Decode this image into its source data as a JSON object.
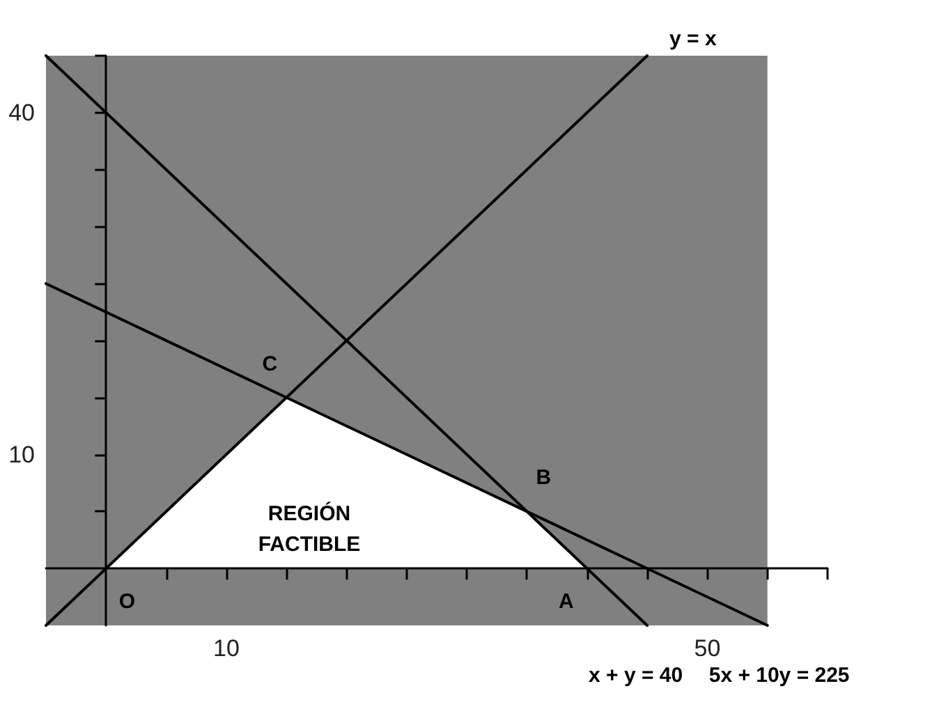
{
  "chart_data": {
    "type": "line",
    "xlim": [
      -5,
      60
    ],
    "ylim": [
      -5,
      45
    ],
    "xticks": [
      {
        "value": 5,
        "label": null
      },
      10,
      {
        "value": 15,
        "label": null
      },
      {
        "value": 20,
        "label": null
      },
      {
        "value": 25,
        "label": null
      },
      {
        "value": 30,
        "label": null
      },
      {
        "value": 35,
        "label": null
      },
      {
        "value": 40,
        "label": null
      },
      {
        "value": 45,
        "label": null
      },
      50,
      {
        "value": 55,
        "label": null
      },
      {
        "value": 60,
        "label": null
      }
    ],
    "yticks": [
      {
        "value": 5,
        "label": null
      },
      10,
      {
        "value": 15,
        "label": null
      },
      {
        "value": 20,
        "label": null
      },
      {
        "value": 25,
        "label": null
      },
      {
        "value": 30,
        "label": null
      },
      {
        "value": 35,
        "label": null
      },
      40,
      {
        "value": 45,
        "label": null
      }
    ],
    "series": [
      {
        "type": "area",
        "color": "#ffffff",
        "x": [
          0,
          15,
          35,
          40
        ],
        "values": [
          0,
          15,
          5,
          0
        ]
      },
      {
        "name": "y = x",
        "color": "#000000",
        "x": [
          -5,
          45
        ],
        "values": [
          -5,
          45
        ]
      },
      {
        "name": "x + y = 40",
        "color": "#000000",
        "x": [
          -5,
          45
        ],
        "values": [
          45,
          -5
        ]
      },
      {
        "name": "5x + 10y = 225",
        "color": "#000000",
        "x": [
          -5,
          55
        ],
        "values": [
          25,
          -5
        ]
      }
    ],
    "bands": [
      {
        "axis": "x",
        "from": -5,
        "to": 55,
        "color": "#808080"
      }
    ],
    "annotations": [
      {
        "text": "O",
        "x": 0,
        "y": 0
      },
      {
        "text": "A",
        "x": 40,
        "y": 0
      },
      {
        "text": "B",
        "x": 35,
        "y": 5
      },
      {
        "text": "C",
        "x": 15,
        "y": 15
      },
      "REGIÓN\nFACTIBLE"
    ],
    "grid": false,
    "legend": false,
    "marker": "none",
    "line_style": "solid"
  }
}
